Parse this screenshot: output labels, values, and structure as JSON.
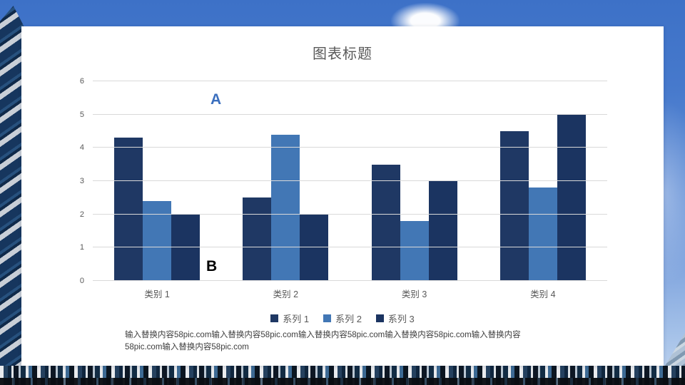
{
  "slide": {
    "title": "图表标题",
    "body_lines": [
      "输入替换内容58pic.com输入替换内容58pic.com输入替换内容58pic.com输入替换内容58pic.com输入替换内容",
      "58pic.com输入替换内容58pic.com"
    ]
  },
  "chart_data": {
    "type": "bar",
    "title": "图表标题",
    "categories": [
      "类别 1",
      "类别 2",
      "类别 3",
      "类别 4"
    ],
    "series": [
      {
        "name": "系列 1",
        "color": "#1F3864",
        "values": [
          4.3,
          2.5,
          3.5,
          4.5
        ]
      },
      {
        "name": "系列 2",
        "color": "#4277B5",
        "values": [
          2.4,
          4.4,
          1.8,
          2.8
        ]
      },
      {
        "name": "系列 3",
        "color": "#1B3461",
        "values": [
          2.0,
          2.0,
          3.0,
          5.0
        ]
      }
    ],
    "ylim": [
      0,
      6
    ],
    "yticks": [
      0,
      1,
      2,
      3,
      4,
      5,
      6
    ],
    "grid": true,
    "legend_position": "bottom",
    "annotations": [
      {
        "text": "A",
        "color": "#3B6FBE"
      },
      {
        "text": "B",
        "color": "#000000"
      }
    ],
    "label_color": "#595959",
    "gridline_color": "#D9D9D9"
  }
}
